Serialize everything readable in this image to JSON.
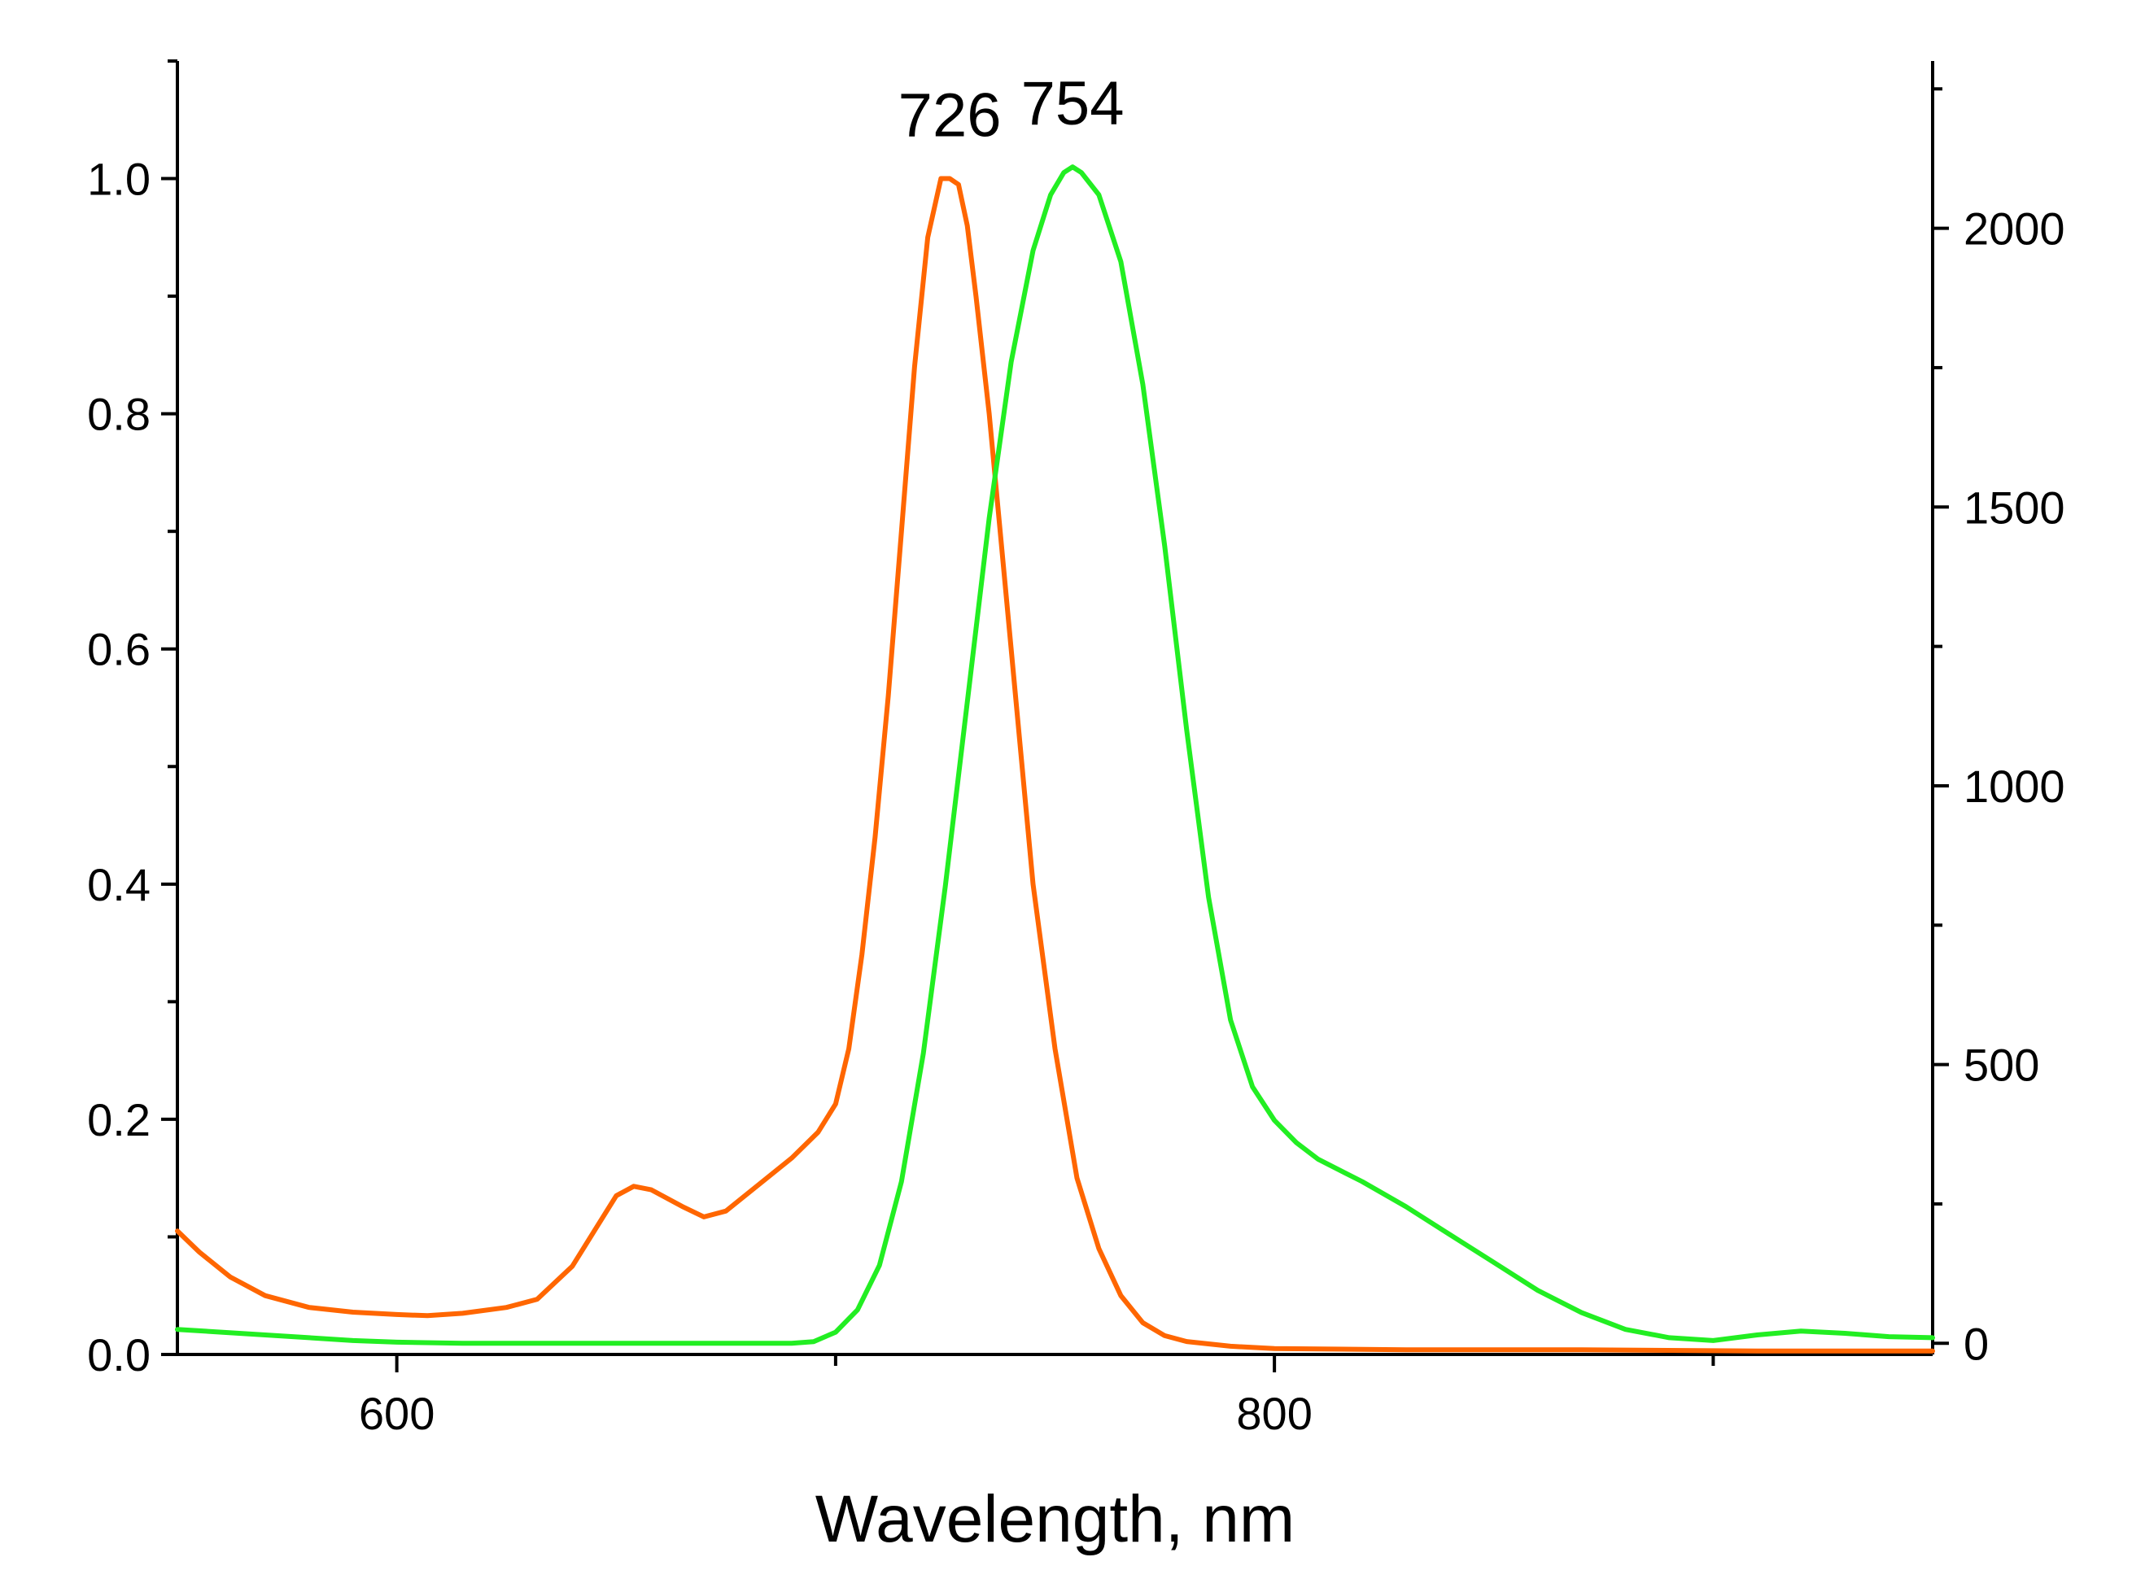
{
  "chart_data": {
    "type": "line",
    "xlabel": "Wavelength, nm",
    "xlim": [
      550,
      950
    ],
    "x_ticks": [
      600,
      800
    ],
    "x_minor_ticks": [
      700,
      900
    ],
    "ylim_left": [
      0,
      1.1
    ],
    "left_ticks": [
      "0.0",
      "0.2",
      "0.4",
      "0.6",
      "0.8",
      "1.0"
    ],
    "ylim_right": [
      -20,
      2300
    ],
    "right_ticks": [
      "0",
      "500",
      "1000",
      "1500",
      "2000"
    ],
    "grid": false,
    "series": [
      {
        "axis": "left",
        "color": "#ff6600",
        "peak_label": "726",
        "points": [
          [
            550,
            0.105
          ],
          [
            555,
            0.087
          ],
          [
            562,
            0.066
          ],
          [
            570,
            0.05
          ],
          [
            580,
            0.04
          ],
          [
            590,
            0.036
          ],
          [
            600,
            0.034
          ],
          [
            607,
            0.033
          ],
          [
            615,
            0.035
          ],
          [
            625,
            0.04
          ],
          [
            632,
            0.047
          ],
          [
            640,
            0.075
          ],
          [
            645,
            0.105
          ],
          [
            650,
            0.135
          ],
          [
            654,
            0.143
          ],
          [
            658,
            0.14
          ],
          [
            665,
            0.126
          ],
          [
            670,
            0.117
          ],
          [
            675,
            0.122
          ],
          [
            682,
            0.143
          ],
          [
            690,
            0.167
          ],
          [
            696,
            0.189
          ],
          [
            700,
            0.213
          ],
          [
            703,
            0.26
          ],
          [
            706,
            0.34
          ],
          [
            709,
            0.44
          ],
          [
            712,
            0.56
          ],
          [
            715,
            0.7
          ],
          [
            718,
            0.84
          ],
          [
            721,
            0.95
          ],
          [
            724,
            1.0
          ],
          [
            726,
            1.0
          ],
          [
            728,
            0.995
          ],
          [
            730,
            0.96
          ],
          [
            732,
            0.9
          ],
          [
            735,
            0.8
          ],
          [
            740,
            0.6
          ],
          [
            745,
            0.4
          ],
          [
            750,
            0.26
          ],
          [
            755,
            0.15
          ],
          [
            760,
            0.09
          ],
          [
            765,
            0.05
          ],
          [
            770,
            0.027
          ],
          [
            775,
            0.016
          ],
          [
            780,
            0.011
          ],
          [
            790,
            0.007
          ],
          [
            800,
            0.005
          ],
          [
            830,
            0.004
          ],
          [
            870,
            0.004
          ],
          [
            910,
            0.003
          ],
          [
            950,
            0.003
          ]
        ]
      },
      {
        "axis": "right",
        "color": "#22ee22",
        "peak_label": "754",
        "points": [
          [
            550,
            25
          ],
          [
            560,
            20
          ],
          [
            570,
            15
          ],
          [
            580,
            10
          ],
          [
            590,
            5
          ],
          [
            600,
            2
          ],
          [
            615,
            0
          ],
          [
            690,
            0
          ],
          [
            695,
            3
          ],
          [
            700,
            20
          ],
          [
            705,
            60
          ],
          [
            710,
            140
          ],
          [
            715,
            290
          ],
          [
            720,
            520
          ],
          [
            725,
            820
          ],
          [
            730,
            1150
          ],
          [
            735,
            1480
          ],
          [
            740,
            1760
          ],
          [
            745,
            1960
          ],
          [
            749,
            2060
          ],
          [
            752,
            2100
          ],
          [
            754,
            2110
          ],
          [
            756,
            2100
          ],
          [
            760,
            2060
          ],
          [
            765,
            1940
          ],
          [
            770,
            1720
          ],
          [
            775,
            1430
          ],
          [
            780,
            1100
          ],
          [
            785,
            800
          ],
          [
            790,
            580
          ],
          [
            795,
            460
          ],
          [
            800,
            400
          ],
          [
            805,
            360
          ],
          [
            810,
            330
          ],
          [
            820,
            290
          ],
          [
            830,
            245
          ],
          [
            840,
            195
          ],
          [
            850,
            145
          ],
          [
            860,
            95
          ],
          [
            870,
            55
          ],
          [
            880,
            25
          ],
          [
            890,
            10
          ],
          [
            900,
            5
          ],
          [
            910,
            15
          ],
          [
            920,
            22
          ],
          [
            930,
            18
          ],
          [
            940,
            12
          ],
          [
            950,
            10
          ]
        ]
      }
    ]
  }
}
